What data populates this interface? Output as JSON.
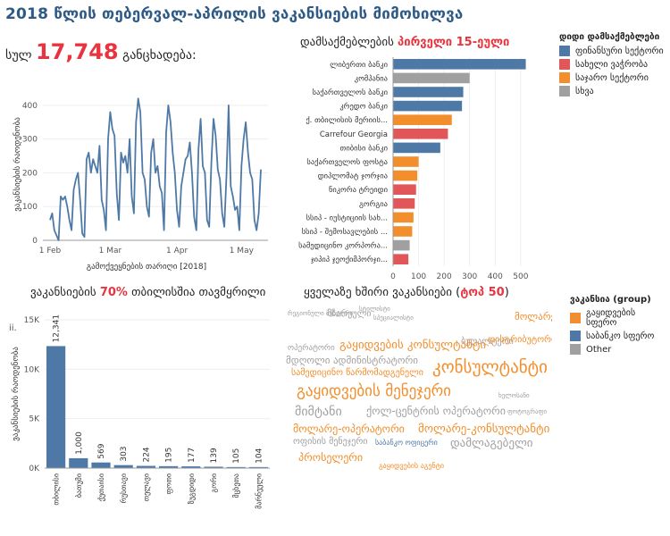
{
  "title": "2018 წლის თებერვალ-აპრილის ვაკანსიების მიმოხილვა",
  "total": {
    "prefix": "სულ",
    "value": "17,748",
    "suffix": "განცხადება:"
  },
  "line_panel": {
    "menu_icon": "ii."
  },
  "employers_panel": {
    "prefix": "დამსაქმებლების",
    "highlight": "პირველი 15-ეული"
  },
  "tbilisi_panel": {
    "prefix": "ვაკანსიების",
    "highlight": "70%",
    "suffix": "თბილისშია თავმყრილი"
  },
  "cloud_panel": {
    "prefix": "ყველაზე ხშირი ვაკანსიები (",
    "highlight": "ტოპ 50",
    "suffix": ")"
  },
  "legend_employers": {
    "title": "დიდი დამსაქმებლები",
    "items": [
      {
        "label": "ფინანსური სექტორი",
        "color": "#4e79a7"
      },
      {
        "label": "სახელი ვაჭრობა",
        "color": "#e15759"
      },
      {
        "label": "საჯარო სექტორი",
        "color": "#f28e2b"
      },
      {
        "label": "სხვა",
        "color": "#a0a0a0"
      }
    ]
  },
  "legend_cloud": {
    "title": "ვაკანსია (group)",
    "items": [
      {
        "label": "გაყიდვების სფერო",
        "color": "#f28e2b"
      },
      {
        "label": "საბანკო სფერო",
        "color": "#4e79a7"
      },
      {
        "label": "Other",
        "color": "#a0a0a0"
      }
    ]
  },
  "chart_data": [
    {
      "type": "line",
      "xlabel": "გამოქვეყნების თარიღი [2018]",
      "ylabel": "ვაკანსიების რაოდენობა",
      "x_ticks": [
        "1 Feb",
        "1 Mar",
        "1 Apr",
        "1 May"
      ],
      "y_ticks": [
        "0",
        "100",
        "200",
        "300",
        "400"
      ],
      "ylim": [
        0,
        450
      ],
      "color": "#4e79a7",
      "values": [
        60,
        80,
        30,
        15,
        0,
        130,
        120,
        130,
        100,
        60,
        30,
        150,
        180,
        200,
        120,
        20,
        10,
        240,
        260,
        200,
        240,
        220,
        200,
        280,
        120,
        90,
        30,
        300,
        380,
        330,
        310,
        140,
        60,
        260,
        230,
        250,
        200,
        300,
        130,
        80,
        350,
        420,
        380,
        200,
        180,
        100,
        70,
        260,
        300,
        200,
        220,
        160,
        140,
        30,
        320,
        400,
        350,
        260,
        200,
        90,
        40,
        160,
        200,
        240,
        250,
        290,
        200,
        70,
        30,
        270,
        360,
        220,
        200,
        60,
        40,
        230,
        360,
        310,
        210,
        180,
        80,
        40,
        190,
        400,
        160,
        130,
        90,
        100,
        30,
        220,
        300,
        350,
        260,
        200,
        180,
        60,
        30,
        80,
        210
      ]
    },
    {
      "type": "bar",
      "orientation": "horizontal",
      "categories": [
        "ლიბერთი ბანკი",
        "კომპანია",
        "საქართველოს ბანკი",
        "კრედო ბანკი",
        "ქ. თბილისის მერიის...",
        "Carrefour Georgia",
        "თიბისი ბანკი",
        "საქართველოს ფოსტა",
        "დიპლომატ ჯორჯია",
        "ნიკორა ტრეიდი",
        "გორგია",
        "სსიპ - იუსტიციის სახ...",
        "სსიპ - შემოსავლების ...",
        "სამედიცინო კორპორა...",
        "ჯიპიპ ჯეოქიმპორჯი..."
      ],
      "values": [
        520,
        300,
        275,
        270,
        230,
        215,
        185,
        100,
        95,
        90,
        85,
        80,
        75,
        65,
        60
      ],
      "groups": [
        "finance",
        "other",
        "finance",
        "finance",
        "public",
        "retail",
        "finance",
        "public",
        "public",
        "retail",
        "retail",
        "public",
        "public",
        "other",
        "retail"
      ],
      "x_ticks": [
        "0",
        "100",
        "200",
        "300",
        "400",
        "500"
      ],
      "xlim": [
        0,
        560
      ]
    },
    {
      "type": "bar",
      "categories": [
        "თბილისი",
        "ბათუმი",
        "ქუთაისი",
        "რუსთავი",
        "თელავი",
        "ფოთი",
        "ზუგდიდი",
        "გორი",
        "მცხეთა",
        "მარნეული"
      ],
      "values": [
        12341,
        1000,
        569,
        303,
        224,
        195,
        177,
        139,
        105,
        104
      ],
      "labels": [
        "12,341",
        "1,000",
        "569",
        "303",
        "224",
        "195",
        "177",
        "139",
        "105",
        "104"
      ],
      "ylabel": "ვაკანსიების რაოდენობა",
      "y_ticks": [
        "0K",
        "5K",
        "10K",
        "15K"
      ],
      "ylim": [
        0,
        15000
      ],
      "color": "#4e79a7"
    }
  ],
  "word_cloud": [
    {
      "text": "რეგიონული მენეჯერი",
      "color": "#a0a0a0",
      "size": 7,
      "x": 4,
      "y": 6
    },
    {
      "text": "მზარეული",
      "color": "#a0a0a0",
      "size": 10,
      "x": 48,
      "y": 5
    },
    {
      "text": "სტილისტი",
      "color": "#a0a0a0",
      "size": 7,
      "x": 84,
      "y": 1
    },
    {
      "text": "სპეციალისტი",
      "color": "#a0a0a0",
      "size": 7,
      "x": 100,
      "y": 11
    },
    {
      "text": "მოლარე",
      "color": "#f28e2b",
      "size": 11,
      "x": 258,
      "y": 7
    },
    {
      "text": "ბუღალტერი",
      "color": "#a0a0a0",
      "size": 10,
      "x": 198,
      "y": 36
    },
    {
      "text": "გაყიდვების კონსულტანტი",
      "color": "#f28e2b",
      "size": 13,
      "x": 62,
      "y": 38
    },
    {
      "text": "დისტრიბუტორი",
      "color": "#f28e2b",
      "size": 10,
      "x": 228,
      "y": 34
    },
    {
      "text": "ოპერატორი",
      "color": "#a0a0a0",
      "size": 9,
      "x": 4,
      "y": 44
    },
    {
      "text": "მდღოლი ადმინისტრატორი",
      "color": "#a0a0a0",
      "size": 11,
      "x": 2,
      "y": 56
    },
    {
      "text": "კონსულტანტი",
      "color": "#f28e2b",
      "size": 19,
      "x": 166,
      "y": 60
    },
    {
      "text": "სამედიცინო წარმომადგენელი",
      "color": "#f28e2b",
      "size": 10,
      "x": 8,
      "y": 71
    },
    {
      "text": "გაყიდვების მენეჯერი",
      "color": "#f28e2b",
      "size": 17,
      "x": 14,
      "y": 88
    },
    {
      "text": "მიმტანი",
      "color": "#a0a0a0",
      "size": 14,
      "x": 12,
      "y": 112
    },
    {
      "text": "ქოლ-ცენტრის ოპერატორი",
      "color": "#a0a0a0",
      "size": 12,
      "x": 92,
      "y": 112
    },
    {
      "text": "მოლარე-ოპერატორი",
      "color": "#f28e2b",
      "size": 12,
      "x": 10,
      "y": 132
    },
    {
      "text": "მოლარე-კონსულტანტი",
      "color": "#f28e2b",
      "size": 13,
      "x": 150,
      "y": 132
    },
    {
      "text": "ოფისის მენეჯერი",
      "color": "#a0a0a0",
      "size": 10,
      "x": 10,
      "y": 148
    },
    {
      "text": "დამლაგებელი",
      "color": "#a0a0a0",
      "size": 13,
      "x": 186,
      "y": 148
    },
    {
      "text": "პროსელერი",
      "color": "#f28e2b",
      "size": 12,
      "x": 16,
      "y": 164
    },
    {
      "text": "საბანკო ოფიცერი",
      "color": "#4e79a7",
      "size": 8,
      "x": 102,
      "y": 150
    },
    {
      "text": "გაყიდვების აგენტი",
      "color": "#f28e2b",
      "size": 8,
      "x": 106,
      "y": 176
    },
    {
      "text": "ხელოსანი",
      "color": "#a0a0a0",
      "size": 7,
      "x": 240,
      "y": 98
    },
    {
      "text": "ფოტოგრაფი",
      "color": "#a0a0a0",
      "size": 7,
      "x": 250,
      "y": 116
    }
  ]
}
